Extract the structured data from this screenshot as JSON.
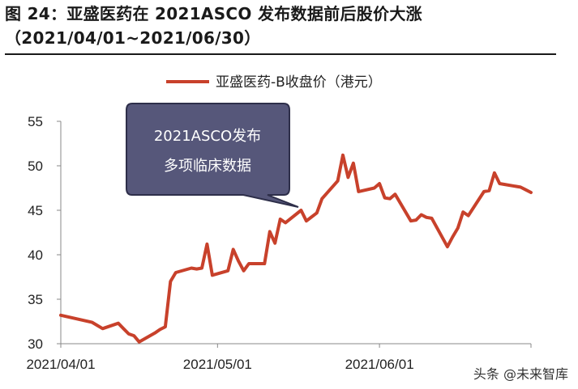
{
  "title_line1": "图 24：亚盛医药在 2021ASCO 发布数据前后股价大涨",
  "title_line2": "（2021/04/01~2021/06/30）",
  "watermark": "头条 @未来智库",
  "chart_data": {
    "type": "line",
    "series": [
      {
        "name": "亚盛医药-B收盘价（港元）",
        "color": "#C8412B",
        "x": [
          "2021-04-01",
          "2021-04-07",
          "2021-04-09",
          "2021-04-12",
          "2021-04-13",
          "2021-04-14",
          "2021-04-15",
          "2021-04-16",
          "2021-04-19",
          "2021-04-20",
          "2021-04-21",
          "2021-04-22",
          "2021-04-23",
          "2021-04-26",
          "2021-04-27",
          "2021-04-28",
          "2021-04-29",
          "2021-04-30",
          "2021-05-03",
          "2021-05-04",
          "2021-05-05",
          "2021-05-06",
          "2021-05-07",
          "2021-05-10",
          "2021-05-11",
          "2021-05-12",
          "2021-05-13",
          "2021-05-14",
          "2021-05-17",
          "2021-05-18",
          "2021-05-20",
          "2021-05-21",
          "2021-05-24",
          "2021-05-25",
          "2021-05-26",
          "2021-05-27",
          "2021-05-28",
          "2021-05-31",
          "2021-06-01",
          "2021-06-02",
          "2021-06-03",
          "2021-06-04",
          "2021-06-07",
          "2021-06-08",
          "2021-06-09",
          "2021-06-10",
          "2021-06-11",
          "2021-06-14",
          "2021-06-15",
          "2021-06-16",
          "2021-06-17",
          "2021-06-18",
          "2021-06-21",
          "2021-06-22",
          "2021-06-23",
          "2021-06-24",
          "2021-06-25",
          "2021-06-28",
          "2021-06-29",
          "2021-06-30"
        ],
        "values": [
          33.2,
          32.4,
          31.7,
          32.3,
          31.7,
          31.1,
          30.9,
          30.2,
          31.2,
          31.6,
          31.9,
          37.0,
          38.0,
          38.5,
          38.4,
          38.5,
          41.2,
          37.7,
          38.2,
          40.6,
          39.3,
          38.2,
          39.0,
          39.0,
          42.6,
          41.3,
          44.0,
          43.6,
          45.0,
          43.8,
          44.7,
          46.3,
          48.3,
          51.2,
          48.7,
          50.3,
          47.1,
          47.5,
          48.0,
          46.4,
          46.3,
          46.8,
          43.8,
          43.9,
          44.5,
          44.2,
          44.1,
          40.9,
          42.0,
          43.0,
          44.8,
          44.4,
          47.1,
          47.2,
          49.2,
          48.0,
          47.9,
          47.6,
          47.3,
          47.0
        ]
      }
    ],
    "x_ticks": [
      "2021/04/01",
      "2021/05/01",
      "2021/06/01"
    ],
    "y_ticks": [
      30,
      35,
      40,
      45,
      50,
      55
    ],
    "ylim": [
      30,
      55
    ],
    "xlim": [
      "2021-04-01",
      "2021-06-30"
    ],
    "grid": false,
    "legend_position": "top-center",
    "annotation": {
      "line1": "2021ASCO发布",
      "line2": "多项临床数据"
    }
  }
}
